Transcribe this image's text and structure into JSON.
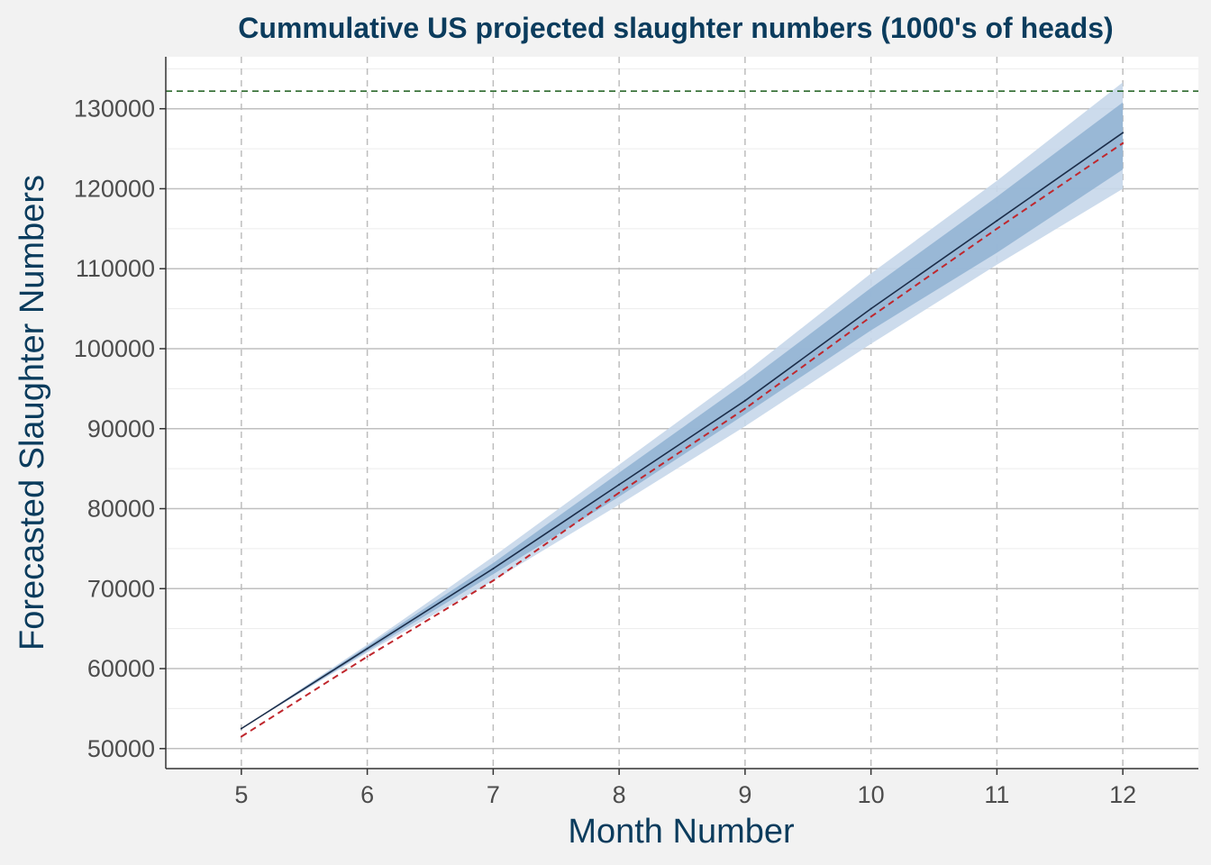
{
  "chart_data": {
    "type": "line",
    "title": "Cummulative US projected slaughter numbers (1000's of heads)",
    "xlabel": "Month Number",
    "ylabel": "Forecasted Slaughter Numbers",
    "xlim": [
      4.4,
      12.6
    ],
    "ylim": [
      47500,
      136500
    ],
    "x_ticks": [
      5,
      6,
      7,
      8,
      9,
      10,
      11,
      12
    ],
    "y_ticks": [
      50000,
      60000,
      70000,
      80000,
      90000,
      100000,
      110000,
      120000,
      130000
    ],
    "x_tick_labels": [
      "5",
      "6",
      "7",
      "8",
      "9",
      "10",
      "11",
      "12"
    ],
    "y_tick_labels": [
      "50000",
      "60000",
      "70000",
      "80000",
      "90000",
      "100000",
      "110000",
      "120000",
      "130000"
    ],
    "grid": true,
    "x": [
      5,
      6,
      7,
      8,
      9,
      10,
      11,
      12
    ],
    "forecast": [
      52500,
      62500,
      72500,
      83000,
      93500,
      105000,
      116000,
      127000
    ],
    "actual": [
      51500,
      61500,
      71000,
      82000,
      92500,
      104000,
      115000,
      125700
    ],
    "band_80": {
      "lower": [
        52500,
        62200,
        71800,
        81500,
        91800,
        102300,
        112000,
        122400
      ],
      "upper": [
        52500,
        62800,
        73200,
        84500,
        95700,
        107600,
        119000,
        130800
      ]
    },
    "band_95": {
      "lower": [
        52500,
        62000,
        71000,
        80500,
        90300,
        100600,
        110500,
        120000
      ],
      "upper": [
        52500,
        63000,
        74000,
        85500,
        97000,
        109400,
        121000,
        133300
      ]
    },
    "reference_line": 132200,
    "colors": {
      "forecast_line": "#1c2e4a",
      "actual_line": "#c0272d",
      "band_80": "#8fb1d2",
      "band_95": "#c6d7ea",
      "reference_line": "#1a5c1a",
      "title": "#0b3c5d",
      "background": "#f2f2f2",
      "panel": "#ffffff"
    }
  }
}
